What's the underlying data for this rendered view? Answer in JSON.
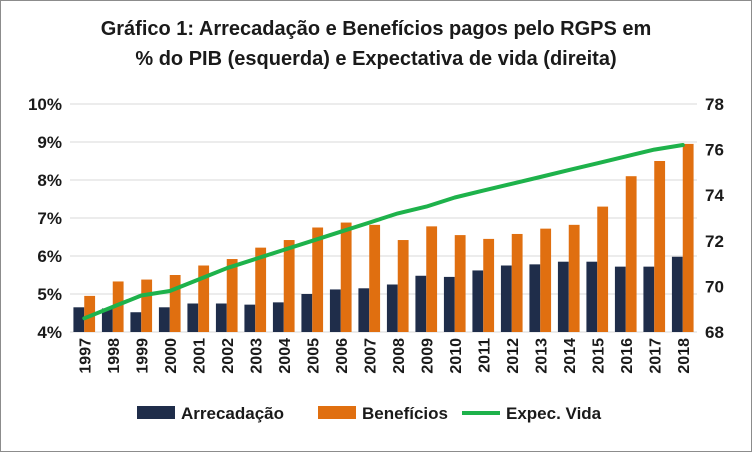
{
  "chart_data": {
    "type": "bar+line",
    "title_line1": "Gráfico 1: Arrecadação  e Benefícios pagos pelo RGPS em",
    "title_line2": "% do PIB (esquerda) e Expectativa de vida (direita)",
    "categories": [
      "1997",
      "1998",
      "1999",
      "2000",
      "2001",
      "2002",
      "2003",
      "2004",
      "2005",
      "2006",
      "2007",
      "2008",
      "2009",
      "2010",
      "2011",
      "2012",
      "2013",
      "2014",
      "2015",
      "2016",
      "2017",
      "2018"
    ],
    "series": [
      {
        "name": "Arrecadação",
        "axis": "left",
        "type": "bar",
        "color": "#1f2d4a",
        "values": [
          4.65,
          4.62,
          4.52,
          4.65,
          4.75,
          4.75,
          4.72,
          4.78,
          5.0,
          5.12,
          5.15,
          5.25,
          5.48,
          5.45,
          5.62,
          5.75,
          5.78,
          5.85,
          5.85,
          5.72,
          5.72,
          5.98
        ]
      },
      {
        "name": "Benefícios",
        "axis": "left",
        "type": "bar",
        "color": "#e06f10",
        "values": [
          4.95,
          5.33,
          5.38,
          5.5,
          5.75,
          5.92,
          6.22,
          6.42,
          6.75,
          6.88,
          6.82,
          6.42,
          6.78,
          6.55,
          6.45,
          6.58,
          6.72,
          6.82,
          7.3,
          8.1,
          8.5,
          8.95
        ]
      },
      {
        "name": "Expec. Vida",
        "axis": "right",
        "type": "line",
        "color": "#1eb24b",
        "values": [
          68.6,
          69.1,
          69.6,
          69.8,
          70.3,
          70.8,
          71.2,
          71.6,
          72.0,
          72.4,
          72.8,
          73.2,
          73.5,
          73.9,
          74.2,
          74.5,
          74.8,
          75.1,
          75.4,
          75.7,
          76.0,
          76.2
        ]
      }
    ],
    "y_left": {
      "min": 4,
      "max": 10,
      "ticks": [
        "4%",
        "5%",
        "6%",
        "7%",
        "8%",
        "9%",
        "10%"
      ]
    },
    "y_right": {
      "min": 68,
      "max": 78,
      "ticks": [
        "68",
        "70",
        "72",
        "74",
        "76",
        "78"
      ]
    },
    "legend": [
      "Arrecadação",
      "Benefícios",
      "Expec. Vida"
    ],
    "legend_position": "bottom"
  }
}
